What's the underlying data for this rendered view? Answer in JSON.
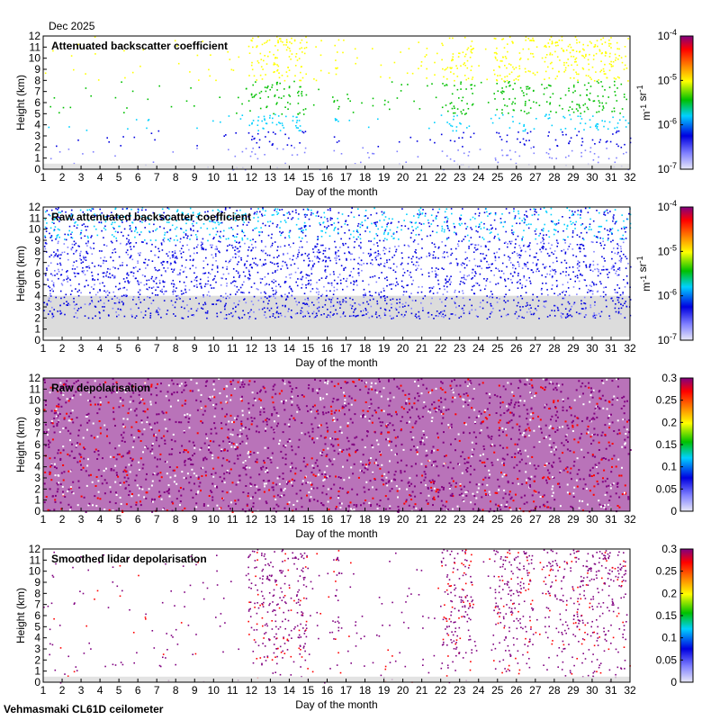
{
  "header": {
    "date": "Dec 2025"
  },
  "footer": {
    "instrument": "Vehmasmaki CL61D ceilometer"
  },
  "colors": {
    "background": "#ffffff",
    "low_signal_gray": "#dcdcdc",
    "colormap": [
      "#e8e8f8",
      "#8080ff",
      "#0000e0",
      "#00d0ff",
      "#00c000",
      "#ffff00",
      "#ff8000",
      "#ff0000",
      "#800080"
    ]
  },
  "chart_data": [
    {
      "type": "heatmap",
      "title": "Attenuated backscatter coefficient",
      "xlabel": "Day of the month",
      "ylabel": "Height (km)",
      "x_ticks": [
        "1",
        "2",
        "3",
        "4",
        "5",
        "6",
        "7",
        "8",
        "9",
        "10",
        "11",
        "12",
        "13",
        "14",
        "15",
        "16",
        "17",
        "18",
        "19",
        "20",
        "21",
        "22",
        "23",
        "24",
        "25",
        "26",
        "27",
        "28",
        "29",
        "30",
        "31",
        "32"
      ],
      "y_ticks": [
        "0",
        "1",
        "2",
        "3",
        "4",
        "5",
        "6",
        "7",
        "8",
        "9",
        "10",
        "11",
        "12"
      ],
      "xlim": [
        1,
        32
      ],
      "ylim": [
        0,
        12
      ],
      "colorbar": {
        "scale": "log",
        "ticks": [
          "10-7",
          "10-6",
          "10-5",
          "10-4"
        ],
        "unit": "m-1 sr-1"
      },
      "cloud_periods_days": [
        [
          11.8,
          14.9
        ],
        [
          16.3,
          16.6
        ],
        [
          22.0,
          23.7
        ],
        [
          24.7,
          26.9
        ],
        [
          27.4,
          27.9
        ],
        [
          28.0,
          31.8
        ]
      ]
    },
    {
      "type": "heatmap",
      "title": "Raw attenuated backscatter coefficient",
      "xlabel": "Day of the month",
      "ylabel": "Height (km)",
      "x_ticks": [
        "1",
        "2",
        "3",
        "4",
        "5",
        "6",
        "7",
        "8",
        "9",
        "10",
        "11",
        "12",
        "13",
        "14",
        "15",
        "16",
        "17",
        "18",
        "19",
        "20",
        "21",
        "22",
        "23",
        "24",
        "25",
        "26",
        "27",
        "28",
        "29",
        "30",
        "31",
        "32"
      ],
      "y_ticks": [
        "0",
        "1",
        "2",
        "3",
        "4",
        "5",
        "6",
        "7",
        "8",
        "9",
        "10",
        "11",
        "12"
      ],
      "xlim": [
        1,
        32
      ],
      "ylim": [
        0,
        12
      ],
      "colorbar": {
        "scale": "log",
        "ticks": [
          "10-7",
          "10-6",
          "10-5",
          "10-4"
        ],
        "unit": "m-1 sr-1"
      }
    },
    {
      "type": "heatmap",
      "title": "Raw depolarisation",
      "xlabel": "Day of the month",
      "ylabel": "Height (km)",
      "x_ticks": [
        "1",
        "2",
        "3",
        "4",
        "5",
        "6",
        "7",
        "8",
        "9",
        "10",
        "11",
        "12",
        "13",
        "14",
        "15",
        "16",
        "17",
        "18",
        "19",
        "20",
        "21",
        "22",
        "23",
        "24",
        "25",
        "26",
        "27",
        "28",
        "29",
        "30",
        "31",
        "32"
      ],
      "y_ticks": [
        "0",
        "1",
        "2",
        "3",
        "4",
        "5",
        "6",
        "7",
        "8",
        "9",
        "10",
        "11",
        "12"
      ],
      "xlim": [
        1,
        32
      ],
      "ylim": [
        0,
        12
      ],
      "colorbar": {
        "scale": "linear",
        "ticks": [
          "0",
          "0.05",
          "0.1",
          "0.15",
          "0.2",
          "0.25",
          "0.3"
        ],
        "range": [
          0,
          0.3
        ]
      }
    },
    {
      "type": "heatmap",
      "title": "Smoothed lidar depolarisation",
      "xlabel": "Day of the month",
      "ylabel": "Height (km)",
      "x_ticks": [
        "1",
        "2",
        "3",
        "4",
        "5",
        "6",
        "7",
        "8",
        "9",
        "10",
        "11",
        "12",
        "13",
        "14",
        "15",
        "16",
        "17",
        "18",
        "19",
        "20",
        "21",
        "22",
        "23",
        "24",
        "25",
        "26",
        "27",
        "28",
        "29",
        "30",
        "31",
        "32"
      ],
      "y_ticks": [
        "0",
        "1",
        "2",
        "3",
        "4",
        "5",
        "6",
        "7",
        "8",
        "9",
        "10",
        "11",
        "12"
      ],
      "xlim": [
        1,
        32
      ],
      "ylim": [
        0,
        12
      ],
      "colorbar": {
        "scale": "linear",
        "ticks": [
          "0",
          "0.05",
          "0.1",
          "0.15",
          "0.2",
          "0.25",
          "0.3"
        ],
        "range": [
          0,
          0.3
        ]
      }
    }
  ]
}
